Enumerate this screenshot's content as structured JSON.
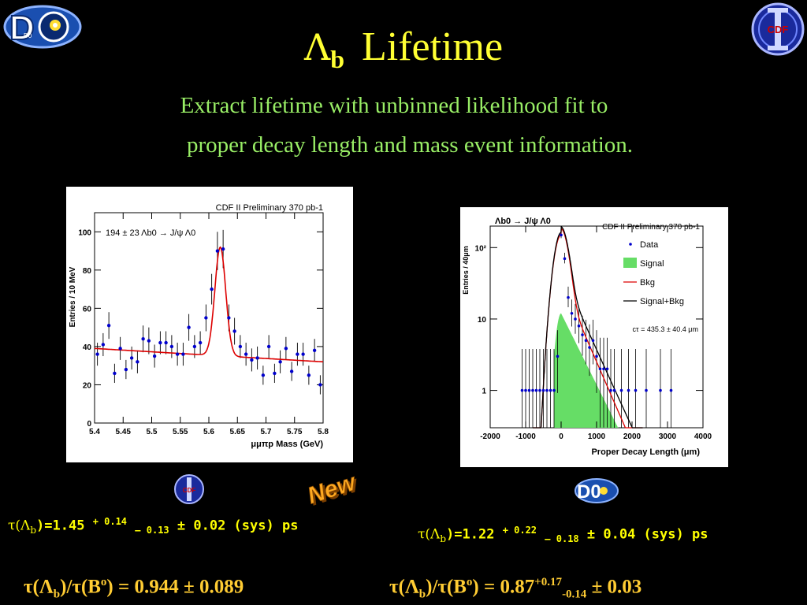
{
  "title": {
    "symbol": "Λ",
    "sub": "b",
    "word": "Lifetime"
  },
  "subtitle": {
    "line1": "Extract lifetime with unbinned likelihood fit  to",
    "line2": "proper decay length and mass event information."
  },
  "logos": {
    "top_left": "D0",
    "top_right": "CDF",
    "new_badge": "New",
    "left_small": "CDF",
    "right_small": "D0"
  },
  "results": {
    "cdf": {
      "lhs": "τ(Λ",
      "sub": "b",
      "eq": ")=1.45",
      "plus": "+ 0.14",
      "minus": "– 0.13",
      "sys": "± 0.02 (sys) ps"
    },
    "d0": {
      "lhs": "τ(Λ",
      "sub": "b",
      "eq": ")=1.22",
      "plus": "+ 0.22",
      "minus": "– 0.18",
      "sys": "± 0.04 (sys) ps"
    },
    "ratio_cdf": {
      "a": "τ(Λ",
      "sub": "b",
      "b": ")/τ(B",
      "sup": "o",
      "c": ") = 0.944 ± 0.089"
    },
    "ratio_d0": {
      "a": "τ(Λ",
      "sub": "b",
      "b": ")/τ(B",
      "sup": "o",
      "c": ") = 0.87",
      "plus": "+0.17",
      "minus": "-0.14",
      "tail": " ± 0.03"
    }
  },
  "colors": {
    "title": "#ffff33",
    "subtitle": "#99ee66",
    "result": "#ffff00",
    "ratio": "#ffcc33",
    "data": "#0000cc",
    "fit": "#dd0000",
    "signal": "#66dd66"
  },
  "chart_data": [
    {
      "type": "scatter",
      "title": "CDF II Preliminary 370 pb-1",
      "annotation": "194 ± 23 Λb0 → J/ψ Λ0",
      "xlabel": "μμπp Mass (GeV)",
      "ylabel": "Entries / 10 MeV",
      "xlim": [
        5.4,
        5.8
      ],
      "ylim": [
        0,
        110
      ],
      "xticks": [
        "5.4",
        "5.45",
        "5.5",
        "5.55",
        "5.6",
        "5.65",
        "5.7",
        "5.75",
        "5.8"
      ],
      "yticks": [
        "0",
        "20",
        "40",
        "60",
        "80",
        "100"
      ],
      "series": [
        {
          "name": "data",
          "x": [
            5.405,
            5.415,
            5.425,
            5.435,
            5.445,
            5.455,
            5.465,
            5.475,
            5.485,
            5.495,
            5.505,
            5.515,
            5.525,
            5.535,
            5.545,
            5.555,
            5.565,
            5.575,
            5.585,
            5.595,
            5.605,
            5.615,
            5.625,
            5.635,
            5.645,
            5.655,
            5.665,
            5.675,
            5.685,
            5.695,
            5.705,
            5.715,
            5.725,
            5.735,
            5.745,
            5.755,
            5.765,
            5.775,
            5.785,
            5.795
          ],
          "y": [
            36,
            41,
            51,
            26,
            39,
            28,
            34,
            32,
            44,
            43,
            35,
            42,
            42,
            40,
            36,
            36,
            50,
            40,
            42,
            55,
            70,
            90,
            91,
            55,
            48,
            40,
            36,
            33,
            34,
            25,
            40,
            26,
            32,
            39,
            27,
            36,
            36,
            25,
            38,
            20
          ],
          "yerr": [
            6,
            6,
            7,
            5,
            6,
            5,
            6,
            6,
            7,
            7,
            6,
            6,
            6,
            6,
            6,
            6,
            7,
            6,
            6,
            7,
            8,
            10,
            10,
            7,
            7,
            6,
            6,
            6,
            6,
            5,
            6,
            5,
            6,
            6,
            5,
            6,
            6,
            5,
            6,
            5
          ]
        },
        {
          "name": "fit",
          "curve": "gaussian+linear",
          "mean": 5.62,
          "sigma": 0.0095,
          "peak": 92,
          "bkg_start": 39,
          "bkg_end": 32
        }
      ]
    },
    {
      "type": "scatter",
      "title": "CDF II Preliminary 370 pb-1",
      "process": "Λb0 → J/ψ Λ0",
      "xlabel": "Proper Decay Length (μm)",
      "ylabel": "Entries / 40μm",
      "xlim": [
        -2000,
        4000
      ],
      "ylim": [
        0.3,
        200
      ],
      "yscale": "log",
      "xticks": [
        "-2000",
        "-1000",
        "0",
        "1000",
        "2000",
        "3000",
        "4000"
      ],
      "yticks": [
        "1",
        "10",
        "10²"
      ],
      "annotation": "cτ = 435.3 ± 40.4 μm",
      "legend": [
        "Data",
        "Signal",
        "Bkg",
        "Signal+Bkg"
      ],
      "legend_position": "top-right",
      "series": [
        {
          "name": "Data",
          "x": [
            -1100,
            -1000,
            -900,
            -800,
            -700,
            -600,
            -500,
            -400,
            -300,
            -200,
            -100,
            0,
            100,
            200,
            300,
            400,
            500,
            600,
            700,
            800,
            900,
            1000,
            1100,
            1200,
            1300,
            1400,
            1500,
            1700,
            1900,
            2100,
            2400,
            2800,
            3100
          ],
          "y": [
            1,
            1,
            1,
            1,
            1,
            1,
            1,
            1,
            1,
            1,
            3,
            150,
            70,
            20,
            12,
            10,
            8,
            6,
            5,
            4,
            5,
            3,
            2,
            2,
            2,
            1,
            1,
            1,
            1,
            1,
            1,
            1,
            1
          ]
        },
        {
          "name": "Signal",
          "ctau_um": 435.3,
          "peak": 12
        },
        {
          "name": "Bkg",
          "curve": "gaussian+exponential"
        },
        {
          "name": "Signal+Bkg",
          "curve": "sum"
        }
      ]
    }
  ]
}
